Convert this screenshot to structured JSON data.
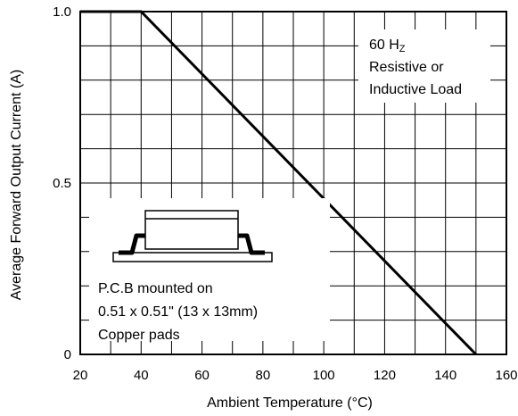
{
  "chart_data": {
    "type": "line",
    "title": "",
    "xlabel": "Ambient Temperature (°C)",
    "ylabel": "Average Forward Output Current (A)",
    "xlim": [
      20,
      160
    ],
    "ylim": [
      0,
      1.0
    ],
    "x_ticks": [
      20,
      40,
      60,
      80,
      100,
      120,
      140,
      160
    ],
    "x_tick_labels": [
      "20",
      "40",
      "60",
      "80",
      "100",
      "120",
      "140",
      "160"
    ],
    "y_ticks": [
      0,
      0.5,
      1.0
    ],
    "y_tick_labels": [
      "0",
      "0.5",
      "1.0"
    ],
    "grid": true,
    "series": [
      {
        "x": [
          20,
          40,
          150
        ],
        "y": [
          1.0,
          1.0,
          0
        ]
      }
    ],
    "annotations": {
      "condition": {
        "line1": "60 H",
        "line1_sub": "Z",
        "line2": "Resistive or",
        "line3": "Inductive Load"
      },
      "mounting": {
        "line1": "P.C.B mounted on",
        "line2": "0.51 x 0.51\" (13 x 13mm)",
        "line3": "Copper pads"
      }
    }
  }
}
